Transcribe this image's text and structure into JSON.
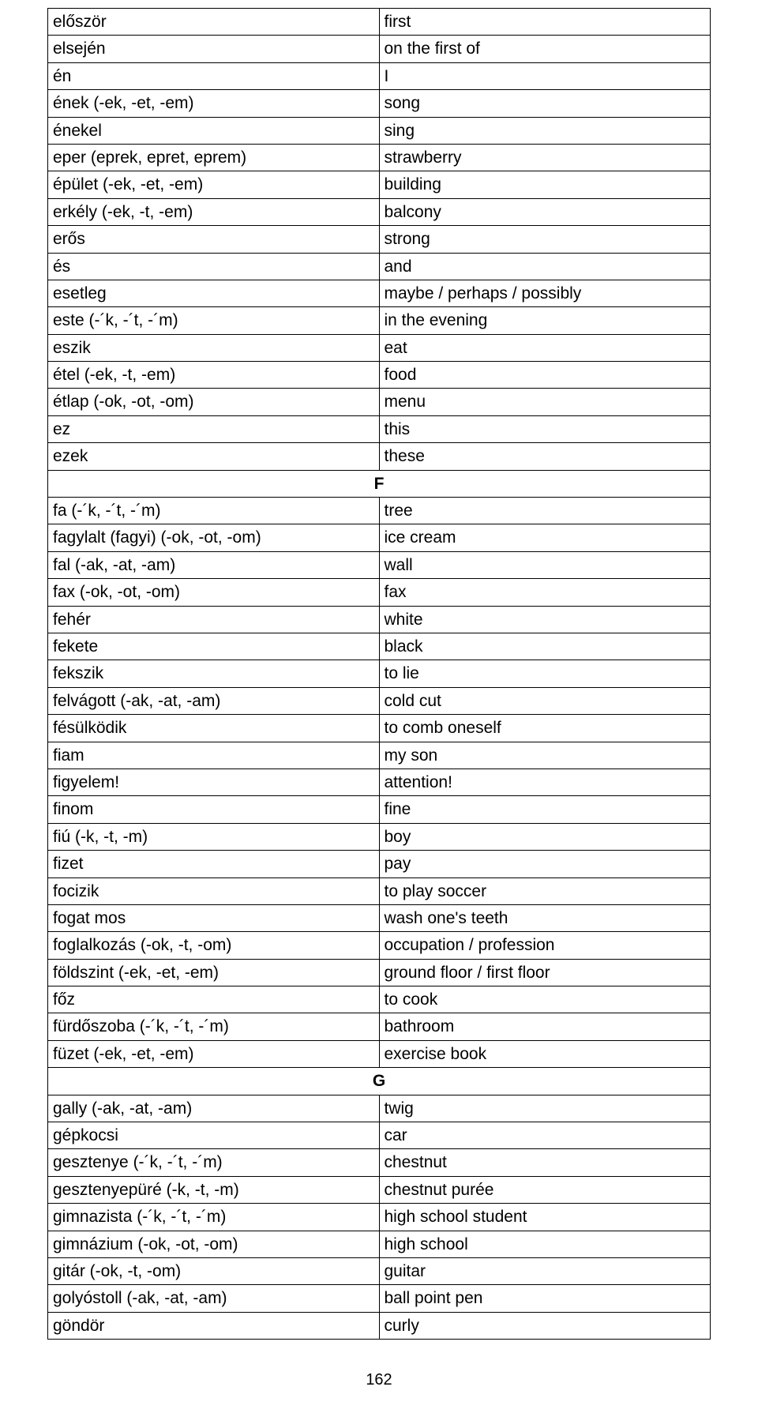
{
  "table": {
    "border_color": "#000000",
    "background_color": "#ffffff",
    "font_size": 21,
    "col_widths": [
      "50%",
      "50%"
    ],
    "rows": [
      {
        "hu": "először",
        "en": "first"
      },
      {
        "hu": "elsején",
        "en": "on the first of"
      },
      {
        "hu": "én",
        "en": "I"
      },
      {
        "hu": "ének (-ek, -et, -em)",
        "en": "song"
      },
      {
        "hu": "énekel",
        "en": "sing"
      },
      {
        "hu": "eper (eprek, epret, eprem)",
        "en": "strawberry"
      },
      {
        "hu": "épület (-ek, -et, -em)",
        "en": "building"
      },
      {
        "hu": "erkély (-ek, -t, -em)",
        "en": "balcony"
      },
      {
        "hu": "erős",
        "en": "strong"
      },
      {
        "hu": "és",
        "en": "and"
      },
      {
        "hu": "esetleg",
        "en": "maybe / perhaps / possibly"
      },
      {
        "hu": "este (-´k, -´t, -´m)",
        "en": "in the evening"
      },
      {
        "hu": "eszik",
        "en": "eat"
      },
      {
        "hu": "étel (-ek, -t, -em)",
        "en": "food"
      },
      {
        "hu": "étlap (-ok, -ot, -om)",
        "en": "menu"
      },
      {
        "hu": "ez",
        "en": "this"
      },
      {
        "hu": "ezek",
        "en": "these"
      },
      {
        "section": "F"
      },
      {
        "hu": "fa (-´k, -´t, -´m)",
        "en": "tree"
      },
      {
        "hu": "fagylalt (fagyi) (-ok, -ot, -om)",
        "en": "ice cream"
      },
      {
        "hu": "fal (-ak, -at, -am)",
        "en": "wall"
      },
      {
        "hu": "fax (-ok, -ot, -om)",
        "en": "fax"
      },
      {
        "hu": "fehér",
        "en": "white"
      },
      {
        "hu": "fekete",
        "en": "black"
      },
      {
        "hu": "fekszik",
        "en": "to lie"
      },
      {
        "hu": "felvágott (-ak, -at, -am)",
        "en": "cold cut"
      },
      {
        "hu": "fésülködik",
        "en": "to comb oneself"
      },
      {
        "hu": "fiam",
        "en": "my son"
      },
      {
        "hu": "figyelem!",
        "en": "attention!"
      },
      {
        "hu": "finom",
        "en": "fine"
      },
      {
        "hu": "fiú (-k, -t, -m)",
        "en": "boy"
      },
      {
        "hu": "fizet",
        "en": "pay"
      },
      {
        "hu": "focizik",
        "en": "to play soccer"
      },
      {
        "hu": "fogat mos",
        "en": "wash one's teeth"
      },
      {
        "hu": "foglalkozás (-ok, -t, -om)",
        "en": "occupation / profession"
      },
      {
        "hu": "földszint (-ek, -et, -em)",
        "en": "ground floor / first floor"
      },
      {
        "hu": "főz",
        "en": "to cook"
      },
      {
        "hu": "fürdőszoba (-´k, -´t, -´m)",
        "en": "bathroom"
      },
      {
        "hu": "füzet (-ek, -et, -em)",
        "en": "exercise book"
      },
      {
        "section": "G"
      },
      {
        "hu": "gally (-ak, -at, -am)",
        "en": "twig"
      },
      {
        "hu": "gépkocsi",
        "en": "car"
      },
      {
        "hu": "gesztenye (-´k, -´t, -´m)",
        "en": "chestnut"
      },
      {
        "hu": "gesztenyepüré (-k, -t, -m)",
        "en": "chestnut purée"
      },
      {
        "hu": "gimnazista (-´k, -´t, -´m)",
        "en": "high school student"
      },
      {
        "hu": "gimnázium (-ok, -ot, -om)",
        "en": "high school"
      },
      {
        "hu": "gitár (-ok, -t, -om)",
        "en": "guitar"
      },
      {
        "hu": "golyóstoll (-ak, -at, -am)",
        "en": "ball point pen"
      },
      {
        "hu": "göndör",
        "en": "curly"
      }
    ]
  },
  "page_number": "162"
}
